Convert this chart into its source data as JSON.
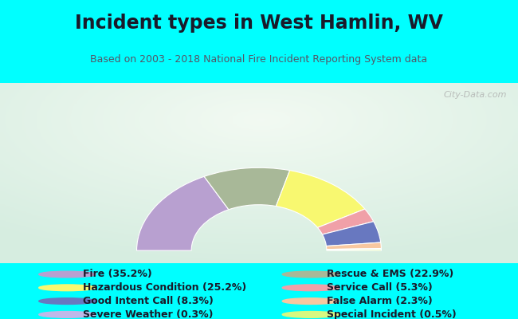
{
  "title": "Incident types in West Hamlin, WV",
  "subtitle": "Based on 2003 - 2018 National Fire Incident Reporting System data",
  "background_color": "#00FFFF",
  "chart_bg_gradient_left": "#d8edd8",
  "chart_bg_gradient_right": "#f0f8f0",
  "chart_bg_center": "#ffffff",
  "segments_display_order": [
    {
      "label": "Fire",
      "pct": 35.2,
      "color": "#b8a0d0"
    },
    {
      "label": "Rescue & EMS",
      "pct": 22.9,
      "color": "#a8b898"
    },
    {
      "label": "Hazardous Condition",
      "pct": 25.2,
      "color": "#f8f870"
    },
    {
      "label": "Service Call",
      "pct": 5.3,
      "color": "#f0a0a8"
    },
    {
      "label": "Good Intent Call",
      "pct": 8.3,
      "color": "#6878c0"
    },
    {
      "label": "False Alarm",
      "pct": 2.3,
      "color": "#f8c8a0"
    },
    {
      "label": "Severe Weather",
      "pct": 0.3,
      "color": "#c0b8e8"
    },
    {
      "label": "Special Incident",
      "pct": 0.5,
      "color": "#d8f880"
    }
  ],
  "legend_col1": [
    {
      "label": "Fire (35.2%)",
      "color": "#b8a0d0"
    },
    {
      "label": "Hazardous Condition (25.2%)",
      "color": "#f8f870"
    },
    {
      "label": "Good Intent Call (8.3%)",
      "color": "#6878c0"
    },
    {
      "label": "Severe Weather (0.3%)",
      "color": "#c0b8e8"
    }
  ],
  "legend_col2": [
    {
      "label": "Rescue & EMS (22.9%)",
      "color": "#a8b898"
    },
    {
      "label": "Service Call (5.3%)",
      "color": "#f0a0a8"
    },
    {
      "label": "False Alarm (2.3%)",
      "color": "#f8c8a0"
    },
    {
      "label": "Special Incident (0.5%)",
      "color": "#d8f880"
    }
  ],
  "watermark": "City-Data.com",
  "title_fontsize": 17,
  "subtitle_fontsize": 9,
  "legend_fontsize": 9,
  "outer_r": 0.85,
  "inner_r": 0.47
}
